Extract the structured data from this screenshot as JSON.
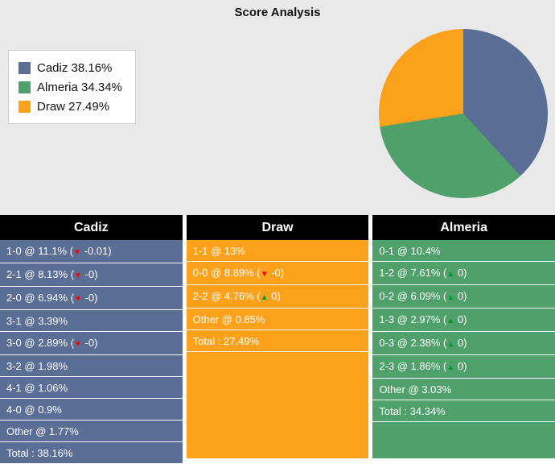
{
  "title": "Score Analysis",
  "colors": {
    "cadiz": "#5a6e96",
    "almeria": "#4fa06a",
    "draw": "#fba11b",
    "header_bg": "#000000",
    "header_text": "#ffffff",
    "row_text": "#ffffff",
    "trend_up": "#009b2d",
    "trend_down": "#ff0000",
    "top_bg": "#e9e9e9"
  },
  "legend": [
    {
      "label": "Cadiz 38.16%",
      "color_key": "cadiz"
    },
    {
      "label": "Almeria 34.34%",
      "color_key": "almeria"
    },
    {
      "label": "Draw 27.49%",
      "color_key": "draw"
    }
  ],
  "chart_data": {
    "type": "pie",
    "title": "Score Analysis",
    "labels": [
      "Cadiz",
      "Almeria",
      "Draw"
    ],
    "values": [
      38.16,
      34.34,
      27.49
    ],
    "colors": [
      "#5a6e96",
      "#4fa06a",
      "#fba11b"
    ],
    "start_angle": "top",
    "direction": "clockwise",
    "legend_position": "left"
  },
  "tables": [
    {
      "header": "Cadiz",
      "color_key": "cadiz",
      "rows": [
        {
          "label": "1-0 @ 11.1%",
          "trend": "down",
          "delta": "-0.01"
        },
        {
          "label": "2-1 @ 8.13%",
          "trend": "down",
          "delta": "-0"
        },
        {
          "label": "2-0 @ 6.94%",
          "trend": "down",
          "delta": "-0"
        },
        {
          "label": "3-1 @ 3.39%"
        },
        {
          "label": "3-0 @ 2.89%",
          "trend": "down",
          "delta": "-0"
        },
        {
          "label": "3-2 @ 1.98%"
        },
        {
          "label": "4-1 @ 1.06%"
        },
        {
          "label": "4-0 @ 0.9%"
        },
        {
          "label": "Other @ 1.77%"
        },
        {
          "label": "Total : 38.16%"
        }
      ]
    },
    {
      "header": "Draw",
      "color_key": "draw",
      "rows": [
        {
          "label": "1-1 @ 13%"
        },
        {
          "label": "0-0 @ 8.89%",
          "trend": "down",
          "delta": "-0"
        },
        {
          "label": "2-2 @ 4.76%",
          "trend": "up",
          "delta": "0"
        },
        {
          "label": "Other @ 0.85%"
        },
        {
          "label": "Total : 27.49%"
        }
      ]
    },
    {
      "header": "Almeria",
      "color_key": "almeria",
      "rows": [
        {
          "label": "0-1 @ 10.4%"
        },
        {
          "label": "1-2 @ 7.61%",
          "trend": "up",
          "delta": "0"
        },
        {
          "label": "0-2 @ 6.09%",
          "trend": "up",
          "delta": "0"
        },
        {
          "label": "1-3 @ 2.97%",
          "trend": "up",
          "delta": "0"
        },
        {
          "label": "0-3 @ 2.38%",
          "trend": "up",
          "delta": "0"
        },
        {
          "label": "2-3 @ 1.86%",
          "trend": "up",
          "delta": "0"
        },
        {
          "label": "Other @ 3.03%"
        },
        {
          "label": "Total : 34.34%"
        }
      ]
    }
  ]
}
